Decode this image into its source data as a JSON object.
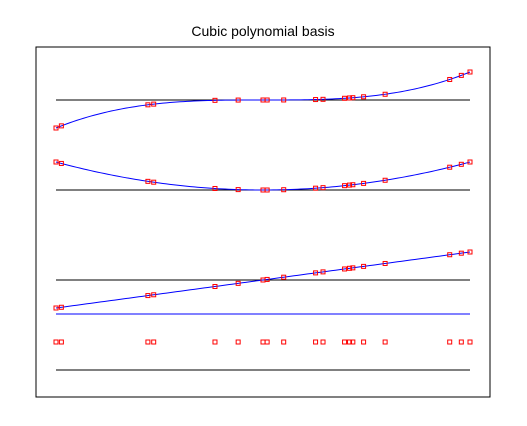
{
  "chart_data": {
    "type": "line",
    "title": "Cubic polynomial basis",
    "xlabel": "",
    "ylabel": "",
    "grid": false,
    "legend": "none",
    "axes_visible": false,
    "x_range": [
      0,
      1
    ],
    "colors": {
      "curve": "#0000ff",
      "point": "#ff0000",
      "baseline": "#000000",
      "frame": "#000000"
    },
    "x": [
      0.0,
      0.013,
      0.222,
      0.236,
      0.384,
      0.44,
      0.5,
      0.51,
      0.55,
      0.627,
      0.645,
      0.697,
      0.709,
      0.717,
      0.743,
      0.795,
      0.951,
      0.979,
      1.0
    ],
    "series": [
      {
        "order": 0,
        "values": [
          0.0,
          0.0,
          0.0,
          0.0,
          0.0,
          0.0,
          0.0,
          0.0,
          0.0,
          0.0,
          0.0,
          0.0,
          0.0,
          0.0,
          0.0,
          0.0,
          0.0,
          0.0,
          0.0
        ],
        "baseline": -1.0
      },
      {
        "order": 1,
        "values": [
          -1.0,
          -0.974,
          -0.556,
          -0.528,
          -0.232,
          -0.12,
          0.0,
          0.02,
          0.1,
          0.254,
          0.29,
          0.394,
          0.418,
          0.434,
          0.486,
          0.59,
          0.902,
          0.958,
          1.0
        ],
        "baseline": 0.0
      },
      {
        "order": 2,
        "values": [
          1.0,
          0.949,
          0.309,
          0.279,
          0.054,
          0.014,
          0.0,
          0.0,
          0.01,
          0.065,
          0.084,
          0.155,
          0.175,
          0.188,
          0.236,
          0.348,
          0.814,
          0.918,
          1.0
        ],
        "baseline": 0.0
      },
      {
        "order": 3,
        "values": [
          -1.0,
          -0.924,
          -0.172,
          -0.147,
          -0.012,
          -0.002,
          0.0,
          0.0,
          0.001,
          0.016,
          0.024,
          0.061,
          0.073,
          0.082,
          0.115,
          0.205,
          0.733,
          0.879,
          1.0
        ],
        "baseline": 0.0
      }
    ]
  }
}
